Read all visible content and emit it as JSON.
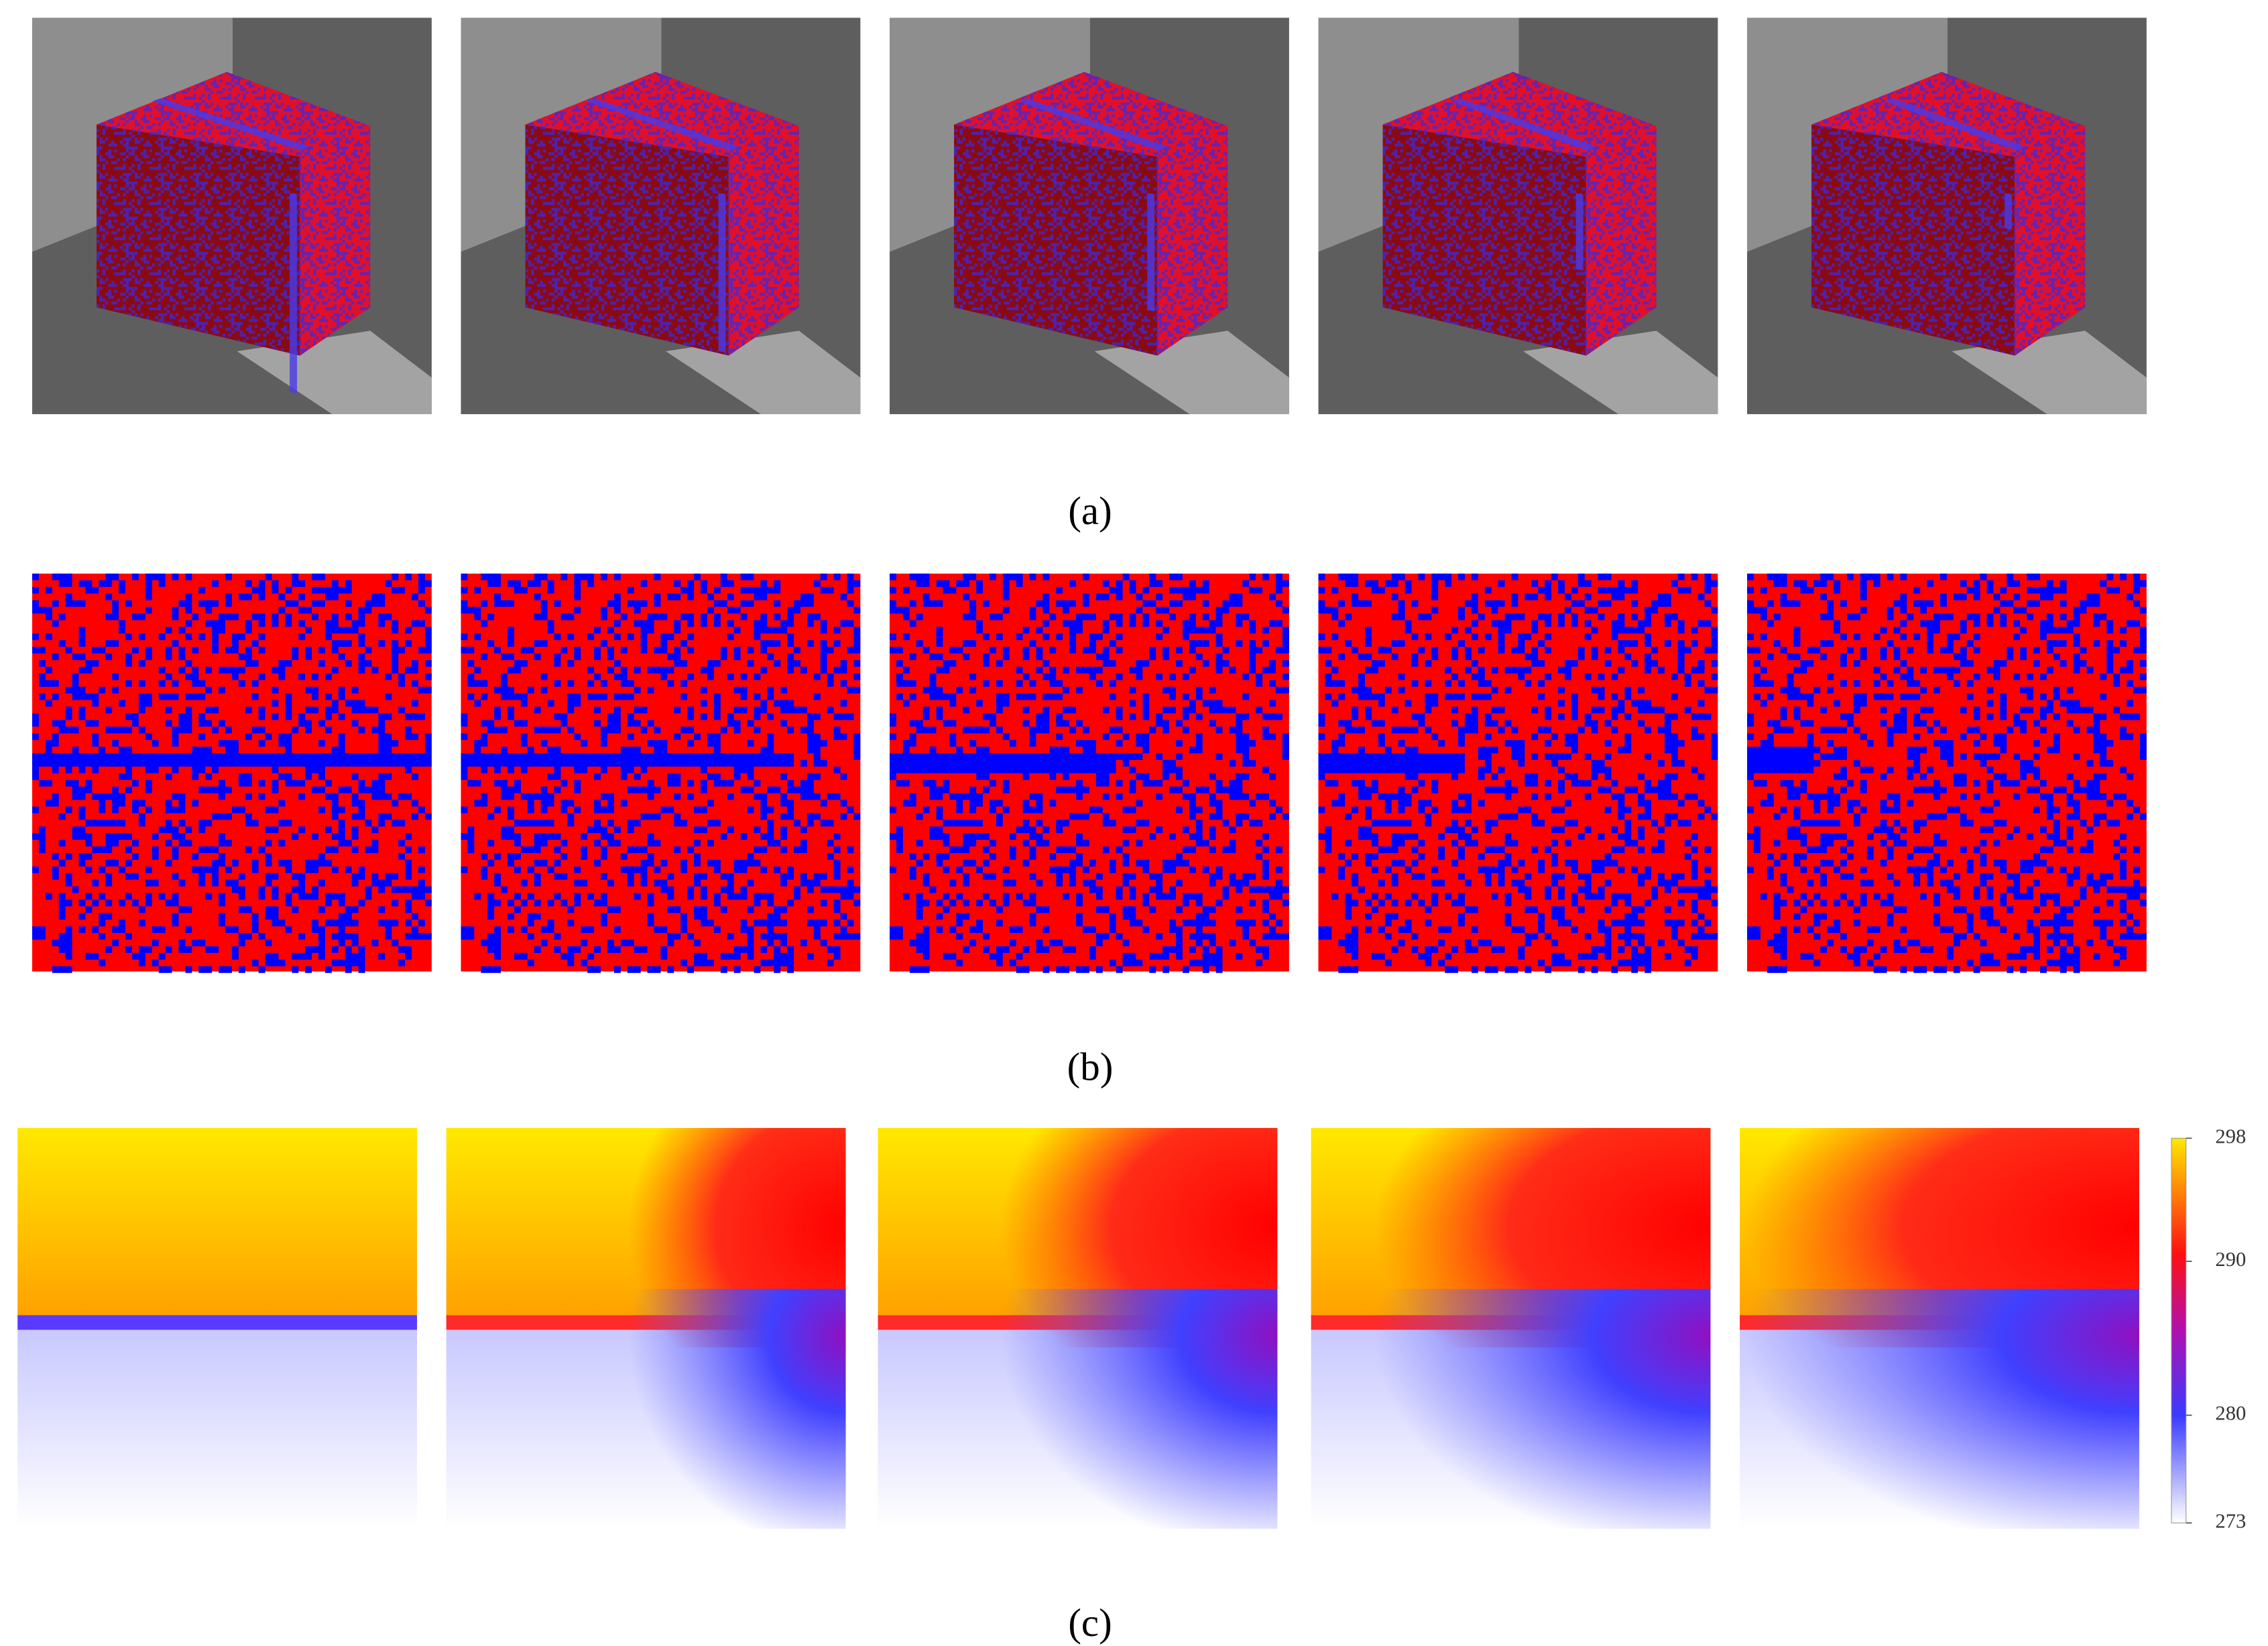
{
  "panels": [
    {
      "label": "(a)"
    },
    {
      "label": "(b)"
    },
    {
      "label": "(c)"
    }
  ],
  "colorbar": {
    "lim": [
      273,
      298
    ],
    "ticks": [
      273,
      280,
      290,
      298
    ]
  }
}
